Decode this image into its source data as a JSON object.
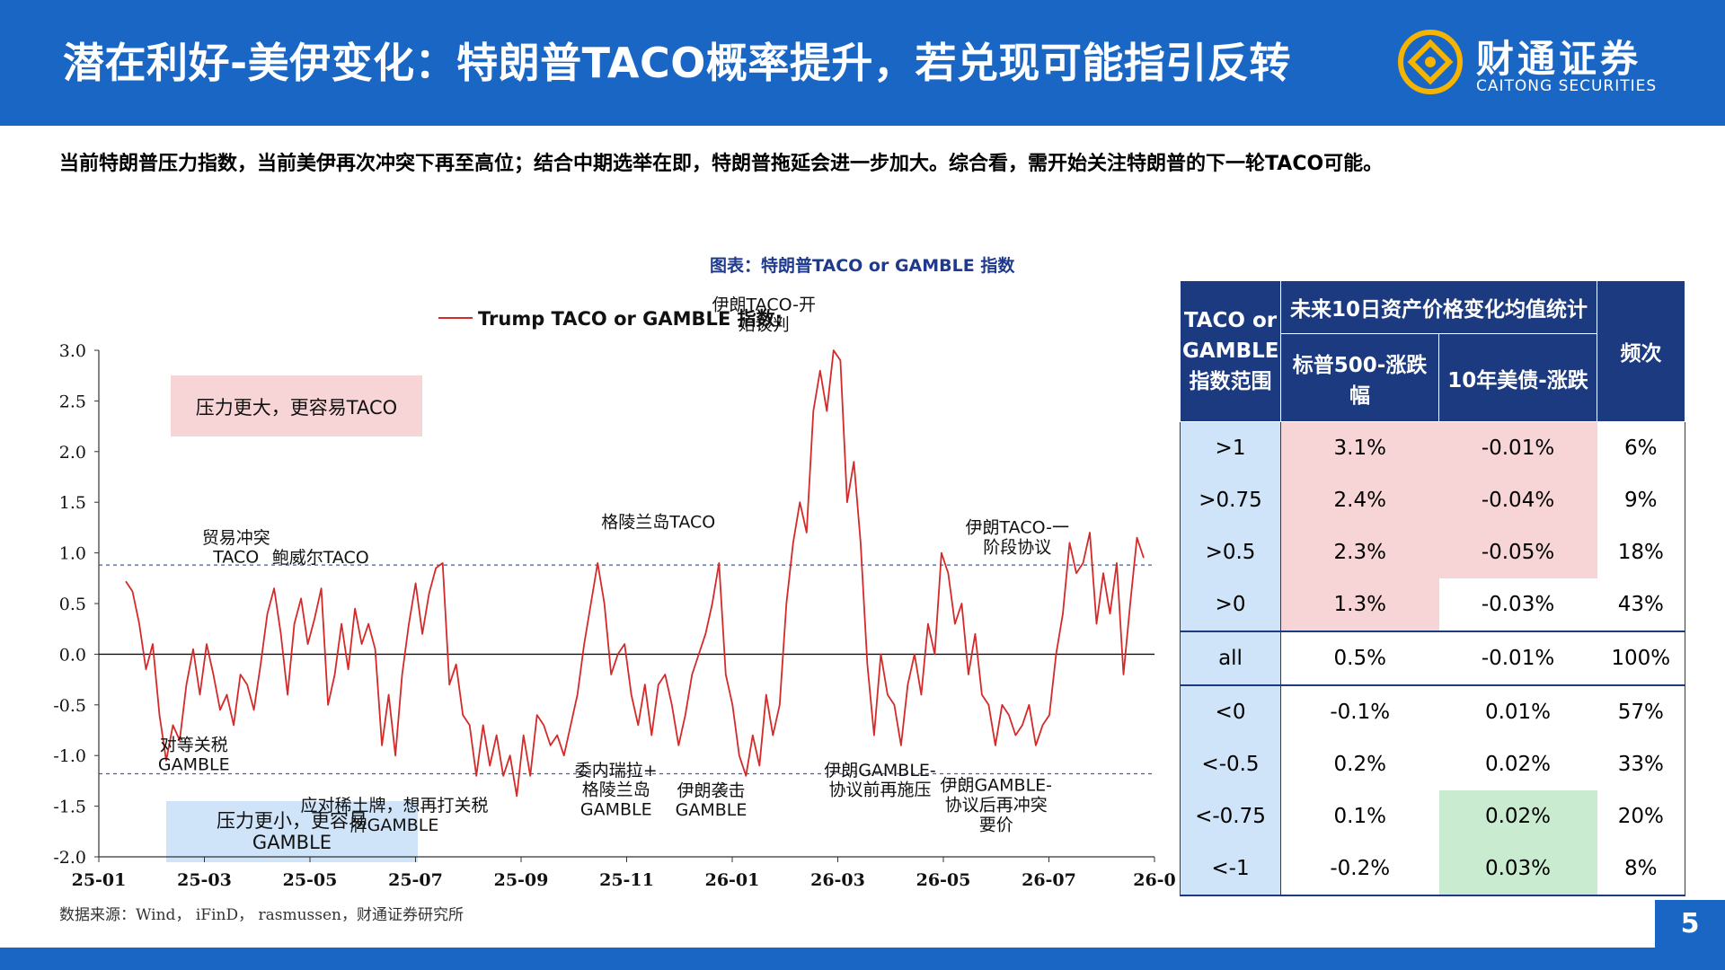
{
  "header": {
    "title": "潜在利好-美伊变化：特朗普TACO概率提升，若兑现可能指引反转",
    "logo_cn": "财通证券",
    "logo_en": "CAITONG SECURITIES"
  },
  "subtitle": "当前特朗普压力指数，当前美伊再次冲突下再至高位；结合中期选举在即，特朗普拖延会进一步加大。综合看，需开始关注特朗普的下一轮TACO可能。",
  "chart_title": "图表：特朗普TACO or GAMBLE 指数",
  "source": "数据来源：Wind， iFinD， rasmussen，财通证券研究所",
  "page_number": "5",
  "colors": {
    "brand_blue": "#1a66c4",
    "line_red": "#d42a2a",
    "table_header": "#1b3a80"
  },
  "chart_data": {
    "type": "line",
    "series": [
      {
        "name": "Trump TACO or GAMBLE 指数:",
        "values": [
          0.72,
          0.62,
          0.3,
          -0.15,
          0.1,
          -0.6,
          -1.05,
          -0.7,
          -0.85,
          -0.3,
          0.05,
          -0.4,
          0.1,
          -0.2,
          -0.55,
          -0.4,
          -0.7,
          -0.2,
          -0.3,
          -0.55,
          -0.1,
          0.4,
          0.65,
          0.2,
          -0.4,
          0.3,
          0.55,
          0.1,
          0.35,
          0.65,
          -0.5,
          -0.2,
          0.3,
          -0.15,
          0.45,
          0.1,
          0.3,
          0.05,
          -0.9,
          -0.4,
          -1.0,
          -0.2,
          0.3,
          0.7,
          0.2,
          0.6,
          0.85,
          0.9,
          -0.3,
          -0.1,
          -0.6,
          -0.7,
          -1.2,
          -0.7,
          -1.1,
          -0.8,
          -1.2,
          -1.0,
          -1.4,
          -0.8,
          -1.2,
          -0.6,
          -0.7,
          -0.9,
          -0.8,
          -1.0,
          -0.7,
          -0.4,
          0.1,
          0.5,
          0.9,
          0.5,
          -0.2,
          0.0,
          0.1,
          -0.4,
          -0.7,
          -0.3,
          -0.8,
          -0.3,
          -0.2,
          -0.5,
          -0.9,
          -0.6,
          -0.2,
          0.0,
          0.2,
          0.5,
          0.9,
          -0.2,
          -0.5,
          -1.0,
          -1.2,
          -0.8,
          -1.1,
          -0.4,
          -0.8,
          -0.5,
          0.5,
          1.1,
          1.5,
          1.2,
          2.4,
          2.8,
          2.4,
          3.0,
          2.9,
          1.5,
          1.9,
          1.1,
          -0.1,
          -0.8,
          0.0,
          -0.4,
          -0.5,
          -0.9,
          -0.3,
          0.0,
          -0.4,
          0.3,
          0.0,
          1.0,
          0.8,
          0.3,
          0.5,
          -0.2,
          0.2,
          -0.4,
          -0.5,
          -0.9,
          -0.5,
          -0.6,
          -0.8,
          -0.7,
          -0.5,
          -0.9,
          -0.7,
          -0.6,
          0.0,
          0.4,
          1.1,
          0.8,
          0.9,
          1.2,
          0.3,
          0.8,
          0.4,
          0.9,
          -0.2,
          0.5,
          1.15,
          0.95
        ],
        "color": "#d42a2a"
      }
    ],
    "x_range": [
      "25-01",
      "26-09"
    ],
    "x_ticks": [
      "25-01",
      "25-03",
      "25-05",
      "25-07",
      "25-09",
      "25-11",
      "26-01",
      "26-03",
      "26-05",
      "26-07",
      "26-0"
    ],
    "y_ticks": [
      "3.0",
      "2.5",
      "2.0",
      "1.5",
      "1.0",
      "0.5",
      "0.0",
      "-0.5",
      "-1.0",
      "-1.5",
      "-2.0"
    ],
    "ylim": [
      -2.0,
      3.0
    ],
    "thresholds": [
      0.88,
      -1.18
    ],
    "legend_position": "top",
    "region_labels": {
      "upper": "压力更大，更容易TACO",
      "lower": "压力更小，更容易GAMBLE"
    },
    "annotations": [
      {
        "text": "贸易冲突\nTACO",
        "x": 0.13,
        "y": 0.9
      },
      {
        "text": "鲍威尔TACO",
        "x": 0.21,
        "y": 0.9
      },
      {
        "text": "格陵兰岛TACO",
        "x": 0.53,
        "y": 1.25
      },
      {
        "text": "伊朗TACO-开\n始谈判",
        "x": 0.63,
        "y": 3.2
      },
      {
        "text": "伊朗TACO-一\n阶段协议",
        "x": 0.87,
        "y": 1.0
      },
      {
        "text": "对等关税\nGAMBLE",
        "x": 0.09,
        "y": -0.95
      },
      {
        "text": "应对稀土牌，想再打关税\n牌GAMBLE",
        "x": 0.28,
        "y": -1.55
      },
      {
        "text": "委内瑞拉+\n格陵兰岛\nGAMBLE",
        "x": 0.49,
        "y": -1.2
      },
      {
        "text": "伊朗袭击\nGAMBLE",
        "x": 0.58,
        "y": -1.4
      },
      {
        "text": "伊朗GAMBLE-\n协议前再施压",
        "x": 0.74,
        "y": -1.2
      },
      {
        "text": "伊朗GAMBLE-\n协议后再冲突\n要价",
        "x": 0.85,
        "y": -1.35
      }
    ]
  },
  "table": {
    "header_col1": "TACO or GAMBLE 指数范围",
    "header_group": "未来10日资产价格变化均值统计",
    "header_sp500": "标普500-涨跌幅",
    "header_ust": "10年美债-涨跌",
    "header_freq": "频次",
    "rows": [
      {
        "range": ">1",
        "sp": "3.1%",
        "ust": "-0.01%",
        "freq": "6%"
      },
      {
        "range": ">0.75",
        "sp": "2.4%",
        "ust": "-0.04%",
        "freq": "9%"
      },
      {
        "range": ">0.5",
        "sp": "2.3%",
        "ust": "-0.05%",
        "freq": "18%"
      },
      {
        "range": ">0",
        "sp": "1.3%",
        "ust": "-0.03%",
        "freq": "43%"
      },
      {
        "range": "all",
        "sp": "0.5%",
        "ust": "-0.01%",
        "freq": "100%"
      },
      {
        "range": "<0",
        "sp": "-0.1%",
        "ust": "0.01%",
        "freq": "57%"
      },
      {
        "range": "<-0.5",
        "sp": "0.2%",
        "ust": "0.02%",
        "freq": "33%"
      },
      {
        "range": "<-0.75",
        "sp": "0.1%",
        "ust": "0.02%",
        "freq": "20%"
      },
      {
        "range": "<-1",
        "sp": "-0.2%",
        "ust": "0.03%",
        "freq": "8%"
      }
    ]
  }
}
